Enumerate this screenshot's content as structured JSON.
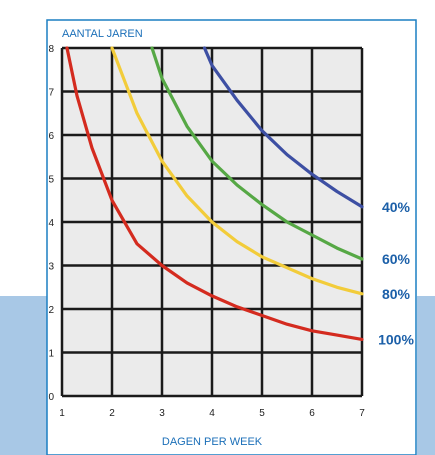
{
  "chart_data": {
    "type": "line",
    "xlabel": "DAGEN PER WEEK",
    "ylabel": "AANTAL JAREN",
    "xlim": [
      1,
      7
    ],
    "ylim": [
      0,
      8
    ],
    "x_ticks": [
      1,
      2,
      3,
      4,
      5,
      6,
      7
    ],
    "y_ticks": [
      0,
      1,
      2,
      3,
      4,
      5,
      6,
      7,
      8
    ],
    "grid": true,
    "series": [
      {
        "name": "40%",
        "color": "#3d4fa3",
        "x": [
          3.85,
          4.0,
          4.5,
          5.0,
          5.5,
          6.0,
          6.5,
          7.0
        ],
        "y": [
          8.0,
          7.6,
          6.8,
          6.1,
          5.55,
          5.1,
          4.7,
          4.35
        ]
      },
      {
        "name": "60%",
        "color": "#56a845",
        "x": [
          2.8,
          3.0,
          3.5,
          4.0,
          4.5,
          5.0,
          5.5,
          6.0,
          6.5,
          7.0
        ],
        "y": [
          8.0,
          7.3,
          6.2,
          5.4,
          4.85,
          4.4,
          4.0,
          3.7,
          3.4,
          3.15
        ]
      },
      {
        "name": "80%",
        "color": "#f2cc3a",
        "x": [
          2.0,
          2.5,
          3.0,
          3.5,
          4.0,
          4.5,
          5.0,
          5.5,
          6.0,
          6.5,
          7.0
        ],
        "y": [
          8.0,
          6.5,
          5.4,
          4.6,
          4.0,
          3.55,
          3.2,
          2.95,
          2.7,
          2.5,
          2.35
        ]
      },
      {
        "name": "100%",
        "color": "#d42b1f",
        "x": [
          1.1,
          1.3,
          1.6,
          2.0,
          2.5,
          3.0,
          3.5,
          4.0,
          4.5,
          5.0,
          5.5,
          6.0,
          6.5,
          7.0
        ],
        "y": [
          8.0,
          6.9,
          5.7,
          4.5,
          3.5,
          3.0,
          2.6,
          2.3,
          2.05,
          1.85,
          1.65,
          1.5,
          1.4,
          1.3
        ]
      }
    ]
  },
  "colors": {
    "frame": "#1b7fc2",
    "band": "#a8c8e6",
    "title_text": "#1b6fb8",
    "label_text": "#1b5fa8"
  }
}
